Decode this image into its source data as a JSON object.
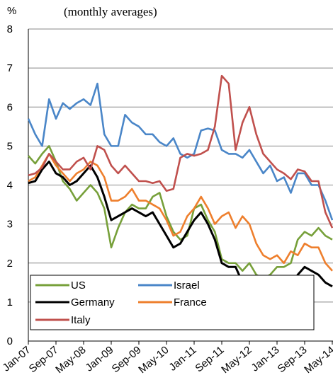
{
  "chart_data": {
    "type": "line",
    "subtitle": "(monthly averages)",
    "y_label": "%",
    "categories": [
      "Jan-07",
      null,
      null,
      null,
      "Sep-07",
      null,
      null,
      null,
      "May-08",
      null,
      null,
      null,
      "Jan-09",
      null,
      null,
      null,
      "Sep-09",
      null,
      null,
      null,
      "May-10",
      null,
      null,
      null,
      "Jan-11",
      null,
      null,
      null,
      "Sep-11",
      null,
      null,
      null,
      "May-12",
      null,
      null,
      null,
      "Jan-13",
      null,
      null,
      null,
      "Sep-13",
      null,
      null,
      null,
      "May-14"
    ],
    "ylim": [
      0,
      8
    ],
    "yticks": [
      0,
      1,
      2,
      3,
      4,
      5,
      6,
      7,
      8
    ],
    "grid": true,
    "legend": "lower left",
    "series": [
      {
        "name": "US",
        "color": "#77a03a",
        "values": [
          4.75,
          4.55,
          4.8,
          5.0,
          4.6,
          4.1,
          3.9,
          3.6,
          3.8,
          4.0,
          3.8,
          3.4,
          2.4,
          2.9,
          3.3,
          3.5,
          3.4,
          3.4,
          3.7,
          3.8,
          3.2,
          2.8,
          2.6,
          2.7,
          3.4,
          3.5,
          3.1,
          2.8,
          2.1,
          2.0,
          2.0,
          1.8,
          2.0,
          1.7,
          1.6,
          1.7,
          1.9,
          1.9,
          2.0,
          2.6,
          2.8,
          2.7,
          2.9,
          2.7,
          2.6
        ]
      },
      {
        "name": "Israel",
        "color": "#4a86c8",
        "values": [
          5.7,
          5.3,
          5.0,
          6.2,
          5.7,
          6.1,
          5.95,
          6.1,
          6.2,
          6.05,
          6.6,
          5.3,
          5.0,
          5.0,
          5.8,
          5.6,
          5.5,
          5.3,
          5.3,
          5.1,
          5.0,
          5.2,
          4.8,
          4.7,
          4.8,
          5.4,
          5.45,
          5.4,
          4.9,
          4.8,
          4.8,
          4.7,
          4.9,
          4.6,
          4.3,
          4.5,
          4.1,
          4.2,
          3.8,
          4.3,
          4.3,
          4.0,
          4.0,
          3.6,
          3.1
        ]
      },
      {
        "name": "Germany",
        "color": "#000000",
        "values": [
          4.05,
          4.1,
          4.4,
          4.6,
          4.3,
          4.2,
          4.0,
          4.1,
          4.3,
          4.5,
          4.2,
          3.7,
          3.1,
          3.2,
          3.3,
          3.4,
          3.3,
          3.2,
          3.3,
          3.0,
          2.7,
          2.4,
          2.5,
          2.8,
          3.1,
          3.3,
          3.0,
          2.6,
          2.0,
          1.9,
          1.9,
          1.5,
          1.5,
          1.4,
          1.5,
          1.4,
          1.6,
          1.5,
          1.4,
          1.7,
          1.9,
          1.8,
          1.7,
          1.5,
          1.4
        ]
      },
      {
        "name": "France",
        "color": "#ee7f2d",
        "values": [
          4.1,
          4.2,
          4.5,
          4.8,
          4.5,
          4.3,
          4.1,
          4.3,
          4.4,
          4.6,
          4.5,
          4.2,
          3.6,
          3.6,
          3.7,
          3.9,
          3.6,
          3.6,
          3.5,
          3.4,
          3.1,
          2.7,
          2.8,
          3.2,
          3.4,
          3.7,
          3.4,
          3.0,
          3.2,
          3.3,
          2.9,
          3.2,
          3.0,
          2.5,
          2.2,
          2.1,
          2.2,
          2.0,
          2.3,
          2.2,
          2.5,
          2.4,
          2.4,
          2.0,
          1.8
        ]
      },
      {
        "name": "Italy",
        "color": "#c0504d",
        "values": [
          4.25,
          4.3,
          4.45,
          4.8,
          4.6,
          4.4,
          4.4,
          4.6,
          4.7,
          4.4,
          5.0,
          4.9,
          4.5,
          4.3,
          4.5,
          4.3,
          4.1,
          4.1,
          4.05,
          4.1,
          3.85,
          3.9,
          4.7,
          4.8,
          4.75,
          4.8,
          4.9,
          5.5,
          6.8,
          6.6,
          4.9,
          5.6,
          6.0,
          5.3,
          4.8,
          4.6,
          4.4,
          4.3,
          4.15,
          4.4,
          4.35,
          4.1,
          4.1,
          3.3,
          2.9
        ]
      }
    ]
  }
}
